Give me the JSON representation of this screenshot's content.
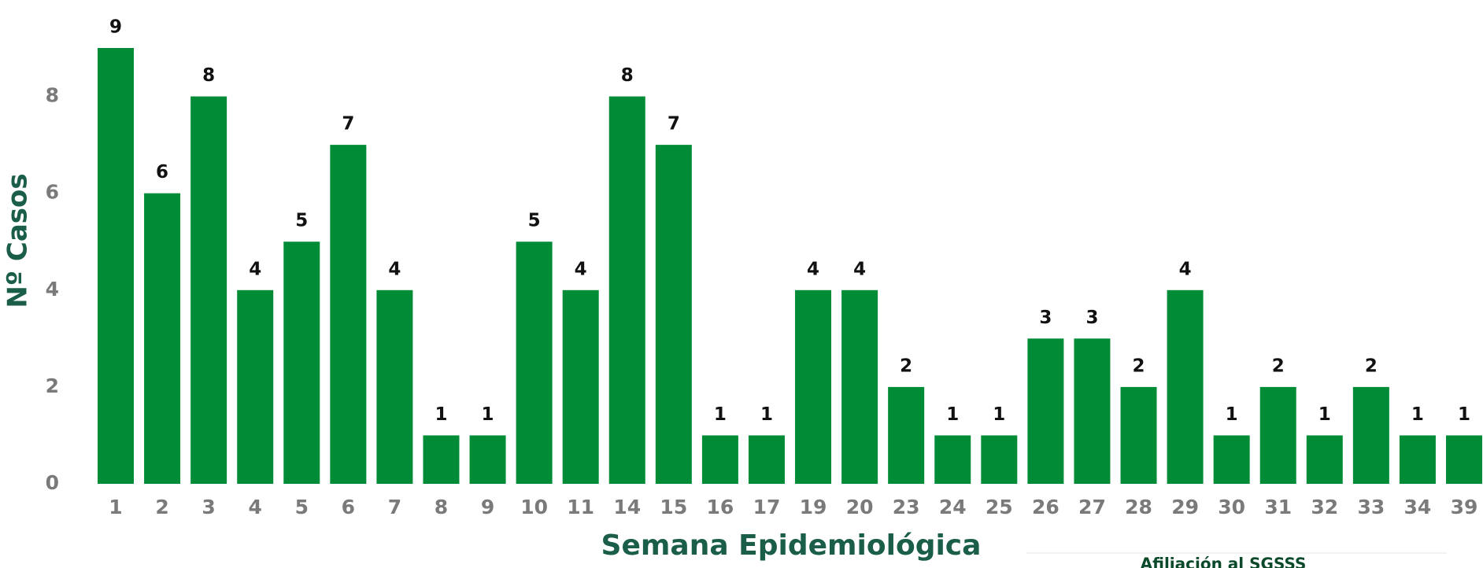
{
  "chart_data": {
    "type": "bar",
    "x_label": "Semana Epidemiológica",
    "y_label": "Nº Casos",
    "annotation": "Afiliación al SGSSS",
    "categories": [
      "1",
      "2",
      "3",
      "4",
      "5",
      "6",
      "7",
      "8",
      "9",
      "10",
      "11",
      "14",
      "15",
      "16",
      "17",
      "19",
      "20",
      "23",
      "24",
      "25",
      "26",
      "27",
      "28",
      "29",
      "30",
      "31",
      "32",
      "33",
      "34",
      "39"
    ],
    "values": [
      9,
      6,
      8,
      4,
      5,
      7,
      4,
      1,
      1,
      5,
      4,
      8,
      7,
      1,
      1,
      4,
      4,
      2,
      1,
      1,
      3,
      3,
      2,
      4,
      1,
      2,
      1,
      2,
      1,
      1
    ],
    "color": "#008c36",
    "ylim": [
      0,
      9
    ],
    "yticks": [
      0,
      2,
      4,
      6,
      8
    ],
    "grid": false
  }
}
